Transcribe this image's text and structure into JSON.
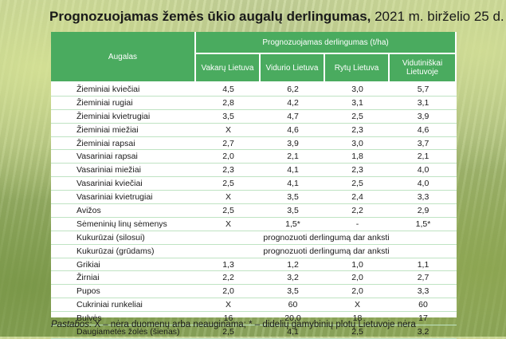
{
  "title": {
    "bold": "Prognozuojamas žemės ūkio augalų derlingumas,",
    "rest": " 2021 m. birželio 25 d."
  },
  "header": {
    "crop_col": "Augalas",
    "group": "Prognozuojamas derlingumas (t/ha)",
    "regions": [
      "Vakarų Lietuva",
      "Vidurio Lietuva",
      "Rytų Lietuva",
      "Vidutiniškai Lietuvoje"
    ]
  },
  "rows": [
    {
      "crop": "Žieminiai kviečiai",
      "values": [
        "4,5",
        "6,2",
        "3,0",
        "5,7"
      ]
    },
    {
      "crop": "Žieminiai rugiai",
      "values": [
        "2,8",
        "4,2",
        "3,1",
        "3,1"
      ]
    },
    {
      "crop": "Žieminiai kvietrugiai",
      "values": [
        "3,5",
        "4,7",
        "2,5",
        "3,9"
      ]
    },
    {
      "crop": "Žieminiai miežiai",
      "values": [
        "X",
        "4,6",
        "2,3",
        "4,6"
      ]
    },
    {
      "crop": "Žieminiai rapsai",
      "values": [
        "2,7",
        "3,9",
        "3,0",
        "3,7"
      ]
    },
    {
      "crop": "Vasariniai rapsai",
      "values": [
        "2,0",
        "2,1",
        "1,8",
        "2,1"
      ]
    },
    {
      "crop": "Vasariniai miežiai",
      "values": [
        "2,3",
        "4,1",
        "2,3",
        "4,0"
      ]
    },
    {
      "crop": "Vasariniai kviečiai",
      "values": [
        "2,5",
        "4,1",
        "2,5",
        "4,0"
      ]
    },
    {
      "crop": "Vasariniai kvietrugiai",
      "values": [
        "X",
        "3,5",
        "2,4",
        "3,3"
      ]
    },
    {
      "crop": "Avižos",
      "values": [
        "2,5",
        "3,5",
        "2,2",
        "2,9"
      ]
    },
    {
      "crop": "Sėmeninių linų sėmenys",
      "values": [
        "X",
        "1,5*",
        "-",
        "1,5*"
      ]
    },
    {
      "crop": "Kukurūzai (silosui)",
      "span": "prognozuoti derlingumą dar anksti"
    },
    {
      "crop": "Kukurūzai (grūdams)",
      "span": "prognozuoti derlingumą dar anksti"
    },
    {
      "crop": "Grikiai",
      "values": [
        "1,3",
        "1,2",
        "1,0",
        "1,1"
      ]
    },
    {
      "crop": "Žirniai",
      "values": [
        "2,2",
        "3,2",
        "2,0",
        "2,7"
      ]
    },
    {
      "crop": "Pupos",
      "values": [
        "2,0",
        "3,5",
        "2,0",
        "3,3"
      ]
    },
    {
      "crop": "Cukriniai runkeliai",
      "values": [
        "X",
        "60",
        "X",
        "60"
      ]
    },
    {
      "crop": "Bulvės",
      "values": [
        "16",
        "20,0",
        "18",
        "17"
      ]
    },
    {
      "crop": "Daugiametės žolės (šienas)",
      "values": [
        "2,5",
        "4,1",
        "2,5",
        "3,2"
      ]
    }
  ],
  "note": {
    "label": "Pastabos:",
    "text": " X – nėra duomenų arba neauginama; * – didelių gamybinių plotų Lietuvoje nėra"
  }
}
